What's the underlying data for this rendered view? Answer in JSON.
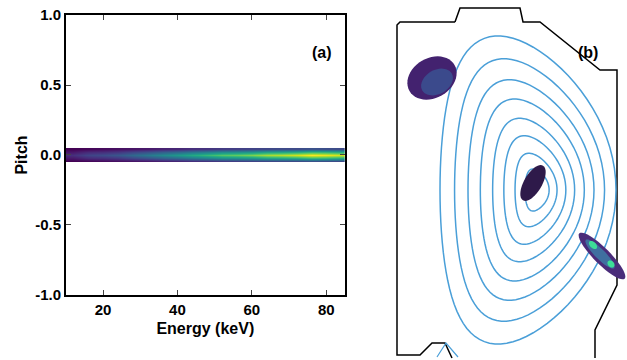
{
  "chart_data": [
    {
      "type": "heatmap",
      "title": "(a)",
      "x_label": "Energy (keV)",
      "y_label": "Pitch",
      "color": "Viridis",
      "x": [
        12,
        16,
        20,
        24,
        28,
        32,
        36,
        40,
        44,
        48,
        52,
        56,
        60,
        64,
        68,
        72,
        76,
        80,
        84
      ],
      "y": [
        -0.04,
        -0.02,
        0,
        0.02,
        0.04
      ],
      "z": [
        [
          0.05,
          0.06,
          0.07,
          0.08,
          0.09,
          0.1,
          0.12,
          0.13,
          0.15,
          0.16,
          0.18,
          0.19,
          0.2,
          0.21,
          0.22,
          0.22,
          0.24,
          0.23,
          0.22
        ],
        [
          0.1,
          0.14,
          0.15,
          0.17,
          0.21,
          0.24,
          0.28,
          0.31,
          0.35,
          0.38,
          0.42,
          0.43,
          0.45,
          0.49,
          0.5,
          0.52,
          0.56,
          0.55,
          0.52
        ],
        [
          0.15,
          0.2,
          0.22,
          0.25,
          0.3,
          0.35,
          0.4,
          0.45,
          0.5,
          0.55,
          0.6,
          0.62,
          0.65,
          0.7,
          0.72,
          0.75,
          0.8,
          0.78,
          0.75
        ],
        [
          0.1,
          0.14,
          0.15,
          0.17,
          0.21,
          0.24,
          0.28,
          0.31,
          0.35,
          0.38,
          0.42,
          0.43,
          0.45,
          0.49,
          0.5,
          0.52,
          0.56,
          0.55,
          0.52
        ],
        [
          0.05,
          0.06,
          0.07,
          0.08,
          0.09,
          0.1,
          0.12,
          0.13,
          0.15,
          0.16,
          0.18,
          0.19,
          0.2,
          0.21,
          0.22,
          0.22,
          0.24,
          0.23,
          0.22
        ]
      ],
      "xlim": [
        10,
        85
      ],
      "xticks": [
        20,
        40,
        60,
        80
      ],
      "ylim": [
        -1,
        1
      ],
      "yticks": [
        {
          "value": -1,
          "label": "-1.0"
        },
        {
          "value": -0.5,
          "label": "-0.5"
        },
        {
          "value": 0,
          "label": "0.0"
        },
        {
          "value": 0.5,
          "label": "0.5"
        },
        {
          "value": 1,
          "label": "1.0"
        }
      ]
    },
    {
      "type": "diagram",
      "title": "(b)",
      "color": "#4a9fd8",
      "tick_labels": false
    }
  ]
}
